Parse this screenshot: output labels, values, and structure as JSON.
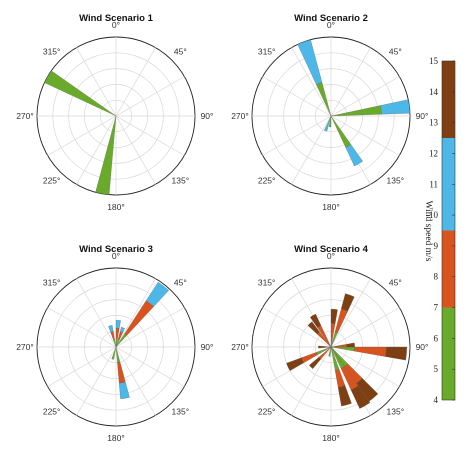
{
  "chart_data": {
    "type": "polar-bar",
    "colorbar": {
      "label": "Wind speed m/s",
      "ticks": [
        4,
        5,
        6,
        7,
        8,
        9,
        10,
        11,
        12,
        13,
        14,
        15
      ],
      "range": [
        4,
        15
      ],
      "bands": [
        {
          "from": 4,
          "to": 7,
          "color": "#6aaa2a"
        },
        {
          "from": 7,
          "to": 9.5,
          "color": "#d9531e"
        },
        {
          "from": 9.5,
          "to": 12.5,
          "color": "#4db8e8"
        },
        {
          "from": 12.5,
          "to": 15,
          "color": "#7e3f12"
        }
      ]
    },
    "direction_labels": [
      "0°",
      "45°",
      "90°",
      "135°",
      "180°",
      "225°",
      "270°",
      "315°"
    ],
    "rmax": 5,
    "panels": [
      {
        "title": "Wind Scenario 1",
        "bars": [
          {
            "dir": 300,
            "segments": [
              {
                "color": "#6aaa2a",
                "r": 5
              }
            ]
          },
          {
            "dir": 190,
            "segments": [
              {
                "color": "#6aaa2a",
                "r": 5
              }
            ]
          }
        ]
      },
      {
        "title": "Wind Scenario 2",
        "bars": [
          {
            "dir": 340,
            "segments": [
              {
                "color": "#6aaa2a",
                "r": 2.2
              },
              {
                "color": "#4db8e8",
                "r": 5
              }
            ]
          },
          {
            "dir": 83,
            "segments": [
              {
                "color": "#6aaa2a",
                "r": 3.2
              },
              {
                "color": "#4db8e8",
                "r": 5
              }
            ]
          },
          {
            "dir": 150,
            "segments": [
              {
                "color": "#6aaa2a",
                "r": 2.2
              },
              {
                "color": "#4db8e8",
                "r": 3.5
              }
            ]
          },
          {
            "dir": 200,
            "segments": [
              {
                "color": "#4db8e8",
                "r": 1.0
              }
            ]
          },
          {
            "dir": 185,
            "segments": [
              {
                "color": "#6aaa2a",
                "r": 0.7
              }
            ]
          }
        ]
      },
      {
        "title": "Wind Scenario 3",
        "bars": [
          {
            "dir": 38,
            "segments": [
              {
                "color": "#6aaa2a",
                "r": 1.0
              },
              {
                "color": "#d9531e",
                "r": 3.5
              },
              {
                "color": "#4db8e8",
                "r": 4.9
              }
            ]
          },
          {
            "dir": 170,
            "segments": [
              {
                "color": "#6aaa2a",
                "r": 1.0
              },
              {
                "color": "#d9531e",
                "r": 2.3
              },
              {
                "color": "#4db8e8",
                "r": 3.3
              }
            ]
          },
          {
            "dir": 345,
            "segments": [
              {
                "color": "#6aaa2a",
                "r": 0.5
              },
              {
                "color": "#d9531e",
                "r": 1.0
              },
              {
                "color": "#4db8e8",
                "r": 1.4
              }
            ]
          },
          {
            "dir": 5,
            "segments": [
              {
                "color": "#6aaa2a",
                "r": 0.5
              },
              {
                "color": "#d9531e",
                "r": 1.2
              },
              {
                "color": "#4db8e8",
                "r": 1.7
              }
            ]
          },
          {
            "dir": 20,
            "segments": [
              {
                "color": "#6aaa2a",
                "r": 0.5
              },
              {
                "color": "#d9531e",
                "r": 1.0
              },
              {
                "color": "#4db8e8",
                "r": 1.3
              }
            ]
          },
          {
            "dir": 195,
            "segments": [
              {
                "color": "#6aaa2a",
                "r": 0.8
              }
            ]
          }
        ]
      },
      {
        "title": "Wind Scenario 4",
        "bars": [
          {
            "dir": 20,
            "segments": [
              {
                "color": "#6aaa2a",
                "r": 1.0
              },
              {
                "color": "#d9531e",
                "r": 2.5
              },
              {
                "color": "#7e3f12",
                "r": 3.5
              }
            ]
          },
          {
            "dir": 5,
            "segments": [
              {
                "color": "#d9531e",
                "r": 1.5
              },
              {
                "color": "#7e3f12",
                "r": 2.4
              }
            ]
          },
          {
            "dir": 330,
            "segments": [
              {
                "color": "#d9531e",
                "r": 1.5
              },
              {
                "color": "#7e3f12",
                "r": 2.3
              }
            ]
          },
          {
            "dir": 318,
            "segments": [
              {
                "color": "#d9531e",
                "r": 1.2
              },
              {
                "color": "#7e3f12",
                "r": 2.0
              }
            ]
          },
          {
            "dir": 95,
            "segments": [
              {
                "color": "#6aaa2a",
                "r": 1.5
              },
              {
                "color": "#d9531e",
                "r": 3.5
              },
              {
                "color": "#7e3f12",
                "r": 4.8
              }
            ]
          },
          {
            "dir": 85,
            "segments": [
              {
                "color": "#d9531e",
                "r": 1.0
              },
              {
                "color": "#7e3f12",
                "r": 1.5
              }
            ]
          },
          {
            "dir": 140,
            "segments": [
              {
                "color": "#6aaa2a",
                "r": 1.5
              },
              {
                "color": "#d9531e",
                "r": 2.8
              },
              {
                "color": "#7e3f12",
                "r": 4.2
              }
            ]
          },
          {
            "dir": 150,
            "segments": [
              {
                "color": "#6aaa2a",
                "r": 1.5
              },
              {
                "color": "#d9531e",
                "r": 3.0
              },
              {
                "color": "#7e3f12",
                "r": 4.3
              }
            ]
          },
          {
            "dir": 165,
            "segments": [
              {
                "color": "#6aaa2a",
                "r": 1.5
              },
              {
                "color": "#d9531e",
                "r": 2.6
              },
              {
                "color": "#7e3f12",
                "r": 3.8
              }
            ]
          },
          {
            "dir": 245,
            "segments": [
              {
                "color": "#6aaa2a",
                "r": 1.0
              },
              {
                "color": "#d9531e",
                "r": 2.0
              },
              {
                "color": "#7e3f12",
                "r": 3.0
              }
            ]
          },
          {
            "dir": 225,
            "segments": [
              {
                "color": "#d9531e",
                "r": 1.0
              },
              {
                "color": "#7e3f12",
                "r": 1.8
              }
            ]
          },
          {
            "dir": 270,
            "segments": [
              {
                "color": "#7e3f12",
                "r": 0.8
              }
            ]
          },
          {
            "dir": 190,
            "segments": [
              {
                "color": "#6aaa2a",
                "r": 0.6
              }
            ]
          }
        ]
      }
    ]
  }
}
